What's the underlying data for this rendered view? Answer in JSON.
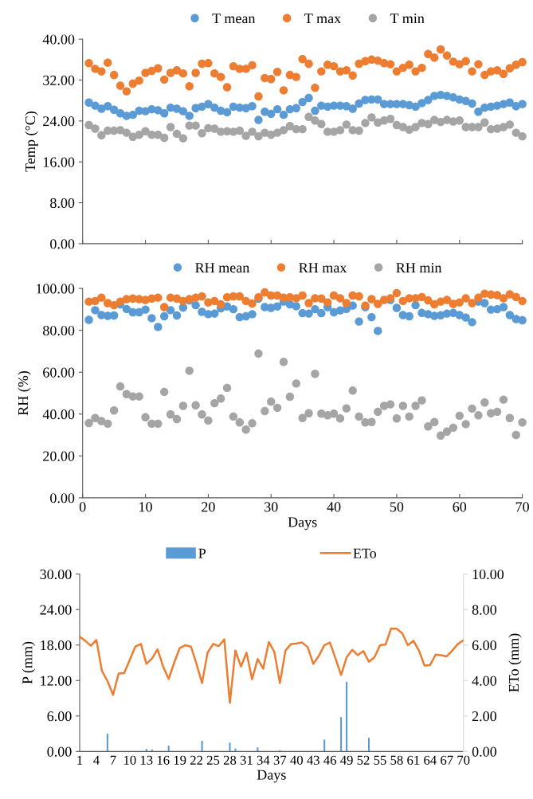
{
  "chart_data": [
    {
      "type": "scatter",
      "ylabel": "Temp (°C)",
      "x": [
        1,
        2,
        3,
        4,
        5,
        6,
        7,
        8,
        9,
        10,
        11,
        12,
        13,
        14,
        15,
        16,
        17,
        18,
        19,
        20,
        21,
        22,
        23,
        24,
        25,
        26,
        27,
        28,
        29,
        30,
        31,
        32,
        33,
        34,
        35,
        36,
        37,
        38,
        39,
        40,
        41,
        42,
        43,
        44,
        45,
        46,
        47,
        48,
        49,
        50,
        51,
        52,
        53,
        54,
        55,
        56,
        57,
        58,
        59,
        60,
        61,
        62,
        63,
        64,
        65,
        66,
        67,
        68,
        69,
        70
      ],
      "xlim": [
        0,
        70
      ],
      "xticks": [
        {
          "value": 0,
          "label": null
        },
        {
          "value": 10,
          "label": null
        },
        {
          "value": 20,
          "label": null
        },
        {
          "value": 30,
          "label": null
        },
        {
          "value": 40,
          "label": null
        },
        {
          "value": 50,
          "label": null
        },
        {
          "value": 60,
          "label": null
        },
        {
          "value": 70,
          "label": null
        }
      ],
      "ylim": [
        0,
        40
      ],
      "yticks": [
        {
          "value": 0,
          "label": "0.00"
        },
        {
          "value": 8,
          "label": "8.00"
        },
        {
          "value": 16,
          "label": "16.00"
        },
        {
          "value": 24,
          "label": "24.00"
        },
        {
          "value": 32,
          "label": "32.00"
        },
        {
          "value": 40,
          "label": "40.00"
        }
      ],
      "tick_labels": "y",
      "legend": "top",
      "marker": "circle",
      "grid": false,
      "series": [
        {
          "name": "T mean",
          "color": "#5b9bd5",
          "values": [
            27.6,
            27.0,
            26.4,
            26.9,
            26.2,
            25.5,
            25.0,
            25.2,
            26.0,
            25.9,
            26.3,
            26.1,
            25.5,
            26.6,
            26.4,
            25.9,
            25.0,
            26.5,
            26.8,
            27.3,
            26.6,
            26.0,
            25.7,
            26.8,
            26.6,
            26.5,
            26.9,
            24.2,
            25.8,
            25.4,
            26.3,
            25.2,
            26.3,
            26.5,
            27.7,
            28.5,
            26.0,
            27.0,
            26.8,
            27.0,
            27.0,
            26.9,
            26.4,
            27.4,
            28.1,
            28.2,
            28.2,
            27.3,
            27.3,
            27.3,
            27.3,
            27.1,
            26.8,
            27.5,
            28.1,
            28.9,
            29.1,
            28.9,
            28.6,
            28.2,
            27.9,
            27.4,
            25.8,
            26.6,
            26.8,
            27.0,
            27.3,
            27.6,
            26.9,
            27.3
          ]
        },
        {
          "name": "T max",
          "color": "#ed7d31",
          "values": [
            35.3,
            34.2,
            33.7,
            35.4,
            33.0,
            30.9,
            29.8,
            31.3,
            31.9,
            33.4,
            33.8,
            34.3,
            32.1,
            33.4,
            33.9,
            33.3,
            30.8,
            33.4,
            35.2,
            35.3,
            33.3,
            32.6,
            30.6,
            34.7,
            34.2,
            34.2,
            34.9,
            28.8,
            32.4,
            32.2,
            33.6,
            30.0,
            33.0,
            32.6,
            36.1,
            35.2,
            30.5,
            33.7,
            35.0,
            34.7,
            33.7,
            33.9,
            32.9,
            35.2,
            35.7,
            36.0,
            35.8,
            35.3,
            35.1,
            33.7,
            34.4,
            35.0,
            33.7,
            34.4,
            37.1,
            36.4,
            38.0,
            36.8,
            35.6,
            35.1,
            35.7,
            33.7,
            35.1,
            33.0,
            33.7,
            33.9,
            33.2,
            34.3,
            35.0,
            35.5
          ]
        },
        {
          "name": "T min",
          "color": "#a5a5a5",
          "values": [
            23.2,
            22.5,
            21.2,
            22.1,
            22.1,
            22.2,
            21.7,
            20.9,
            21.3,
            22.0,
            21.3,
            21.3,
            20.7,
            22.8,
            21.5,
            20.6,
            23.1,
            23.1,
            21.6,
            22.6,
            22.5,
            21.9,
            22.0,
            21.9,
            22.1,
            21.1,
            21.9,
            21.0,
            21.7,
            21.3,
            21.7,
            22.2,
            23.0,
            22.4,
            22.4,
            24.8,
            24.1,
            23.4,
            21.9,
            21.9,
            22.2,
            23.3,
            22.2,
            22.1,
            23.6,
            24.7,
            23.7,
            24.1,
            24.4,
            23.2,
            22.8,
            22.3,
            22.8,
            23.6,
            23.4,
            24.2,
            23.8,
            24.2,
            23.9,
            24.1,
            22.8,
            22.8,
            22.8,
            23.7,
            22.4,
            22.5,
            22.8,
            23.3,
            21.7,
            21.0
          ]
        }
      ]
    },
    {
      "type": "scatter",
      "ylabel": "RH (%)",
      "xlabel": "Days",
      "x": [
        1,
        2,
        3,
        4,
        5,
        6,
        7,
        8,
        9,
        10,
        11,
        12,
        13,
        14,
        15,
        16,
        17,
        18,
        19,
        20,
        21,
        22,
        23,
        24,
        25,
        26,
        27,
        28,
        29,
        30,
        31,
        32,
        33,
        34,
        35,
        36,
        37,
        38,
        39,
        40,
        41,
        42,
        43,
        44,
        45,
        46,
        47,
        48,
        49,
        50,
        51,
        52,
        53,
        54,
        55,
        56,
        57,
        58,
        59,
        60,
        61,
        62,
        63,
        64,
        65,
        66,
        67,
        68,
        69,
        70
      ],
      "xlim": [
        0,
        70
      ],
      "xticks": [
        0,
        10,
        20,
        30,
        40,
        50,
        60,
        70
      ],
      "ylim": [
        0,
        100
      ],
      "yticks": [
        {
          "value": 0,
          "label": "0.00"
        },
        {
          "value": 20,
          "label": "20.00"
        },
        {
          "value": 40,
          "label": "40.00"
        },
        {
          "value": 60,
          "label": "60.00"
        },
        {
          "value": 80,
          "label": "80.00"
        },
        {
          "value": 100,
          "label": "100.00"
        }
      ],
      "legend": "top",
      "marker": "circle",
      "grid": false,
      "series": [
        {
          "name": "RH mean",
          "color": "#5b9bd5",
          "values": [
            85.0,
            89.6,
            87.3,
            86.9,
            87.1,
            92.4,
            90.2,
            88.6,
            88.6,
            89.9,
            85.8,
            81.6,
            86.7,
            89.6,
            87.1,
            90.9,
            94.3,
            92.0,
            88.8,
            87.7,
            88.0,
            90.5,
            91.4,
            90.1,
            86.3,
            86.7,
            87.7,
            95.2,
            91.1,
            90.7,
            91.4,
            93.7,
            92.4,
            91.5,
            88.2,
            88.0,
            90.1,
            88.2,
            91.1,
            88.6,
            89.5,
            90.2,
            91.8,
            84.2,
            91.1,
            86.3,
            79.7,
            null,
            94.5,
            90.7,
            87.3,
            86.7,
            92.0,
            88.3,
            87.7,
            86.9,
            87.2,
            88.0,
            88.3,
            87.3,
            86.1,
            83.9,
            93.7,
            93.0,
            89.9,
            90.1,
            91.1,
            87.3,
            85.4,
            84.8
          ]
        },
        {
          "name": "RH max",
          "color": "#ed7d31",
          "values": [
            93.7,
            94.0,
            95.6,
            93.0,
            92.0,
            93.7,
            94.9,
            95.2,
            94.9,
            94.5,
            95.2,
            95.6,
            91.1,
            95.6,
            95.2,
            94.0,
            94.9,
            95.6,
            96.2,
            93.3,
            94.0,
            92.4,
            95.8,
            96.2,
            96.2,
            94.0,
            92.8,
            95.8,
            98.1,
            96.6,
            96.6,
            95.6,
            95.8,
            95.3,
            96.6,
            93.0,
            95.3,
            95.2,
            93.3,
            96.6,
            95.3,
            93.0,
            96.6,
            96.2,
            91.8,
            94.9,
            92.6,
            94.5,
            95.3,
            97.8,
            94.0,
            95.3,
            95.3,
            95.9,
            94.3,
            92.4,
            93.7,
            94.5,
            92.6,
            93.3,
            95.3,
            93.0,
            95.6,
            97.5,
            97.1,
            96.8,
            95.3,
            97.2,
            95.9,
            94.0
          ]
        },
        {
          "name": "RH min",
          "color": "#a5a5a5",
          "values": [
            35.7,
            38.1,
            36.6,
            35.4,
            41.7,
            53.2,
            49.5,
            48.4,
            48.4,
            38.5,
            35.4,
            35.4,
            50.6,
            39.8,
            37.6,
            43.9,
            60.7,
            44.2,
            39.8,
            36.9,
            45.2,
            47.4,
            52.5,
            38.8,
            36.0,
            32.6,
            35.6,
            68.9,
            41.4,
            45.9,
            43.0,
            64.9,
            48.3,
            54.6,
            38.1,
            40.4,
            59.2,
            40.2,
            39.4,
            40.2,
            37.9,
            42.7,
            51.2,
            38.8,
            36.0,
            36.2,
            41.1,
            43.9,
            44.6,
            37.9,
            43.9,
            38.8,
            43.9,
            46.5,
            34.1,
            36.2,
            29.7,
            31.6,
            33.5,
            39.2,
            35.2,
            42.6,
            39.4,
            45.5,
            40.4,
            41.1,
            46.9,
            38.1,
            30.0,
            36.0
          ]
        }
      ]
    },
    {
      "type": "bar",
      "xlabel": "Days",
      "ylabel": "P (mm)",
      "y2label": "ETo (mm)",
      "categories": [
        "1",
        null,
        null,
        "4",
        null,
        null,
        "7",
        null,
        null,
        "10",
        null,
        null,
        "13",
        null,
        null,
        "16",
        null,
        null,
        "19",
        null,
        null,
        "22",
        null,
        null,
        "25",
        null,
        null,
        "28",
        null,
        null,
        "31",
        null,
        null,
        "34",
        null,
        null,
        "37",
        null,
        null,
        "40",
        null,
        null,
        "43",
        null,
        null,
        "46",
        null,
        null,
        "49",
        null,
        null,
        "52",
        null,
        null,
        "55",
        null,
        null,
        "58",
        null,
        null,
        "61",
        null,
        null,
        "64",
        null,
        null,
        "67",
        null,
        null,
        "70"
      ],
      "ylim": [
        0,
        30
      ],
      "yticks": [
        {
          "value": 0,
          "label": "0.00"
        },
        {
          "value": 6,
          "label": "6.00"
        },
        {
          "value": 12,
          "label": "12.00"
        },
        {
          "value": 18,
          "label": "18.00"
        },
        {
          "value": 24,
          "label": "24.00"
        },
        {
          "value": 30,
          "label": "30.00"
        }
      ],
      "y2lim": [
        0,
        10
      ],
      "y2ticks": [
        {
          "value": 0,
          "label": "0.00"
        },
        {
          "value": 2,
          "label": "2.00"
        },
        {
          "value": 4,
          "label": "4.00"
        },
        {
          "value": 6,
          "label": "6.00"
        },
        {
          "value": 8,
          "label": "8.00"
        },
        {
          "value": 10,
          "label": "10.00"
        }
      ],
      "legend": "top",
      "grid": false,
      "series": [
        {
          "name": "P",
          "color": "#5b9bd5",
          "values": [
            0,
            0,
            0,
            0,
            0,
            3.0,
            0,
            0,
            0,
            0,
            0,
            0,
            0.4,
            0.3,
            0,
            0,
            1.0,
            0,
            0,
            0,
            0,
            0,
            1.8,
            0,
            0,
            0,
            0,
            1.5,
            0.5,
            0,
            0,
            0,
            0.7,
            0,
            0,
            0,
            0.2,
            0,
            0,
            0,
            0,
            0,
            0,
            0,
            2.0,
            0,
            0,
            5.8,
            11.8,
            0,
            0,
            0,
            2.3,
            0,
            0,
            0,
            0,
            0,
            0,
            0,
            0,
            0,
            0,
            0,
            0,
            0,
            0,
            0,
            0,
            0
          ]
        },
        {
          "name": "ETo",
          "type": "line",
          "axis": "y2",
          "color": "#ed7d31",
          "values": [
            6.47,
            6.24,
            5.96,
            6.29,
            4.54,
            3.97,
            3.19,
            4.39,
            4.42,
            5.16,
            5.91,
            6.06,
            4.94,
            5.24,
            5.76,
            4.79,
            4.09,
            5.01,
            5.84,
            5.99,
            5.91,
            4.94,
            3.86,
            5.57,
            6.06,
            5.94,
            6.32,
            2.74,
            5.69,
            4.79,
            5.57,
            4.07,
            5.21,
            4.67,
            6.17,
            5.61,
            3.86,
            5.69,
            6.06,
            6.09,
            6.14,
            5.88,
            4.94,
            5.39,
            5.99,
            6.14,
            5.24,
            4.31,
            5.31,
            5.73,
            5.43,
            5.66,
            5.06,
            5.31,
            5.99,
            6.03,
            6.93,
            6.92,
            6.66,
            5.99,
            6.24,
            5.69,
            4.84,
            4.87,
            5.46,
            5.43,
            5.36,
            5.69,
            6.06,
            6.26
          ]
        }
      ]
    }
  ]
}
